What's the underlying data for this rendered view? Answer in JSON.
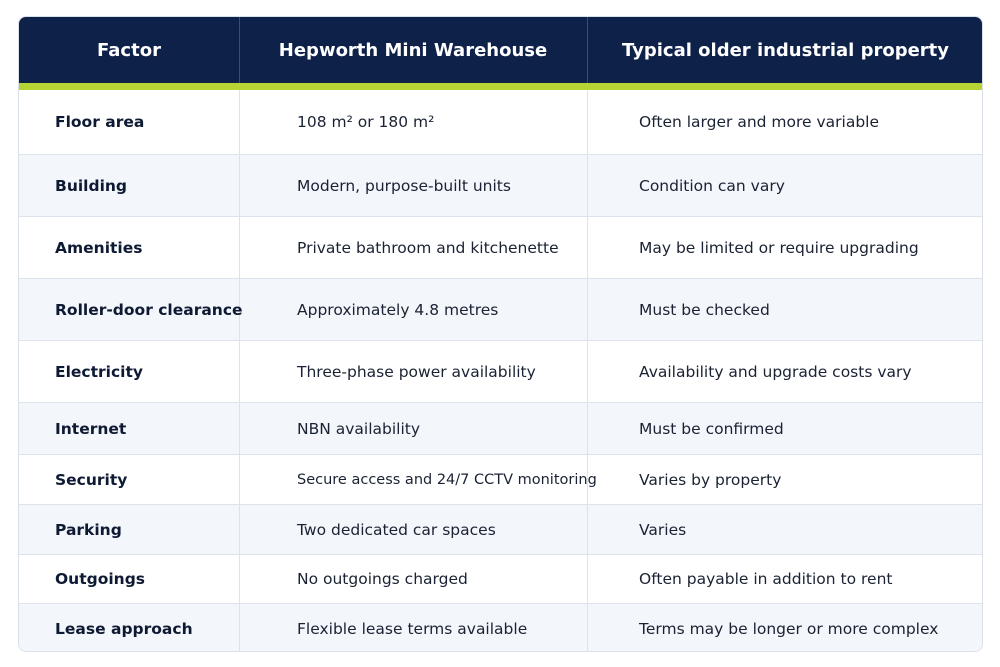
{
  "table": {
    "header": [
      "Factor",
      "Hepworth Mini Warehouse",
      "Typical older industrial property"
    ],
    "rows": [
      [
        "Floor area",
        "108 m² or 180 m²",
        "Often larger and more variable"
      ],
      [
        "Building",
        "Modern, purpose-built units",
        "Condition can vary"
      ],
      [
        "Amenities",
        "Private bathroom and kitchenette",
        "May be limited or require upgrading"
      ],
      [
        "Roller-door clearance",
        "Approximately 4.8 metres",
        "Must be checked"
      ],
      [
        "Electricity",
        "Three-phase power availability",
        "Availability and upgrade costs vary"
      ],
      [
        "Internet",
        "NBN availability",
        "Must be confirmed"
      ],
      [
        "Security",
        "Secure access and 24/7 CCTV monitoring",
        "Varies by property"
      ],
      [
        "Parking",
        "Two dedicated car spaces",
        "Varies"
      ],
      [
        "Outgoings",
        "No outgoings charged",
        "Often payable in addition to rent"
      ],
      [
        "Lease approach",
        "Flexible lease terms available",
        "Terms may be longer or more complex"
      ]
    ]
  }
}
